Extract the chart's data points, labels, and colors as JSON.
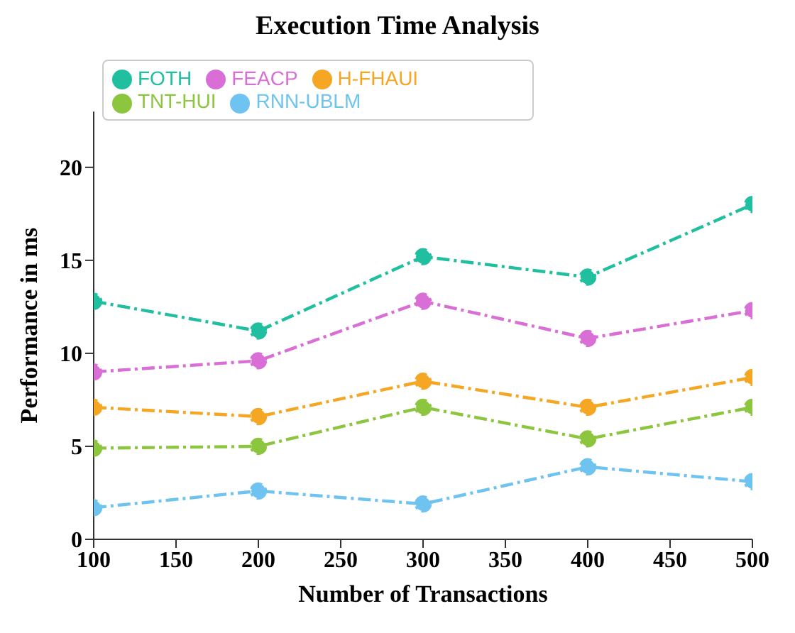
{
  "chart_data": {
    "type": "line",
    "title": "Execution Time Analysis",
    "xlabel": "Number of Transactions",
    "ylabel": "Performance in ms",
    "x": [
      100,
      200,
      300,
      400,
      500
    ],
    "series": [
      {
        "name": "FOTH",
        "color": "#1fbfa0",
        "values": [
          12.8,
          11.2,
          15.2,
          14.1,
          18.0
        ]
      },
      {
        "name": "FEACP",
        "color": "#d96fd6",
        "values": [
          9.0,
          9.6,
          12.8,
          10.8,
          12.3
        ]
      },
      {
        "name": "H-FHAUI",
        "color": "#f5a623",
        "values": [
          7.1,
          6.6,
          8.5,
          7.1,
          8.7
        ]
      },
      {
        "name": "TNT-HUI",
        "color": "#8cc63f",
        "values": [
          4.9,
          5.0,
          7.1,
          5.4,
          7.1
        ]
      },
      {
        "name": "RNN-UBLM",
        "color": "#6fc3f0",
        "values": [
          1.7,
          2.6,
          1.9,
          3.9,
          3.1
        ]
      }
    ],
    "xlim": [
      100,
      500
    ],
    "xticks": [
      100,
      150,
      200,
      250,
      300,
      350,
      400,
      450,
      500
    ],
    "ylim": [
      0,
      23
    ],
    "yticks": [
      0,
      5,
      10,
      15,
      20
    ],
    "grid": false,
    "legend": "top left",
    "marker": "circle",
    "line_style": "dashed"
  }
}
